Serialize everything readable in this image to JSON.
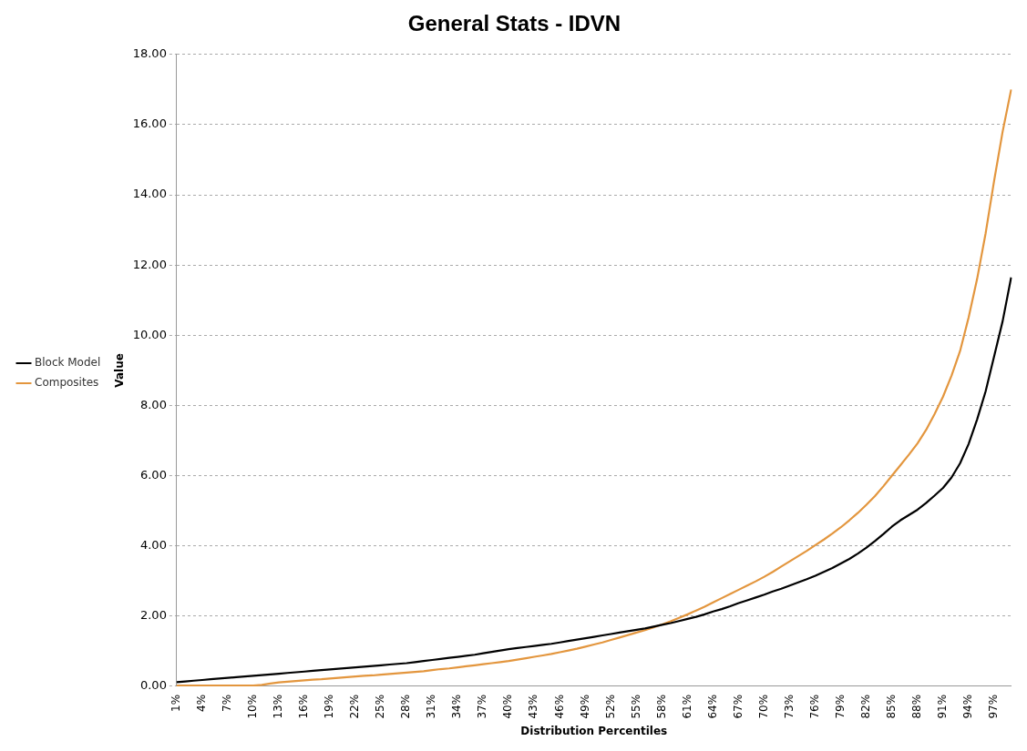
{
  "chart_data": {
    "type": "line",
    "title": "General Stats - IDVN",
    "xlabel": "Distribution Percentiles",
    "ylabel": "Value",
    "categories": [
      "1%",
      null,
      null,
      "4%",
      null,
      null,
      "7%",
      null,
      null,
      "10%",
      null,
      null,
      "13%",
      null,
      null,
      "16%",
      null,
      null,
      "19%",
      null,
      null,
      "22%",
      null,
      null,
      "25%",
      null,
      null,
      "28%",
      null,
      null,
      "31%",
      null,
      null,
      "34%",
      null,
      null,
      "37%",
      null,
      null,
      "40%",
      null,
      null,
      "43%",
      null,
      null,
      "46%",
      null,
      null,
      "49%",
      null,
      null,
      "52%",
      null,
      null,
      "55%",
      null,
      null,
      "58%",
      null,
      null,
      "61%",
      null,
      null,
      "64%",
      null,
      null,
      "67%",
      null,
      null,
      "70%",
      null,
      null,
      "73%",
      null,
      null,
      "76%",
      null,
      null,
      "79%",
      null,
      null,
      "82%",
      null,
      null,
      "85%",
      null,
      null,
      "88%",
      null,
      null,
      "91%",
      null,
      null,
      "94%",
      null,
      null,
      "97%",
      null,
      null
    ],
    "series": [
      {
        "name": "Block Model",
        "color": "#000000",
        "values": [
          0.12,
          0.14,
          0.16,
          0.18,
          0.2,
          0.22,
          0.24,
          0.26,
          0.28,
          0.3,
          0.32,
          0.34,
          0.36,
          0.38,
          0.4,
          0.42,
          0.44,
          0.46,
          0.48,
          0.5,
          0.52,
          0.54,
          0.56,
          0.58,
          0.6,
          0.62,
          0.64,
          0.66,
          0.69,
          0.72,
          0.75,
          0.78,
          0.81,
          0.84,
          0.87,
          0.9,
          0.94,
          0.98,
          1.02,
          1.06,
          1.09,
          1.12,
          1.15,
          1.18,
          1.21,
          1.25,
          1.29,
          1.33,
          1.37,
          1.41,
          1.45,
          1.49,
          1.53,
          1.57,
          1.61,
          1.65,
          1.7,
          1.75,
          1.8,
          1.86,
          1.92,
          1.98,
          2.05,
          2.13,
          2.2,
          2.28,
          2.37,
          2.45,
          2.53,
          2.61,
          2.7,
          2.78,
          2.87,
          2.96,
          3.05,
          3.15,
          3.26,
          3.37,
          3.5,
          3.63,
          3.78,
          3.95,
          4.14,
          4.34,
          4.55,
          4.73,
          4.88,
          5.03,
          5.22,
          5.43,
          5.65,
          5.95,
          6.35,
          6.9,
          7.6,
          8.4,
          9.4,
          10.4,
          11.65
        ]
      },
      {
        "name": "Composites",
        "color": "#e3963e",
        "values": [
          0.02,
          0.02,
          0.02,
          0.02,
          0.02,
          0.02,
          0.02,
          0.02,
          0.02,
          0.02,
          0.04,
          0.08,
          0.11,
          0.13,
          0.15,
          0.17,
          0.19,
          0.2,
          0.22,
          0.24,
          0.26,
          0.28,
          0.3,
          0.31,
          0.33,
          0.35,
          0.37,
          0.39,
          0.41,
          0.43,
          0.46,
          0.49,
          0.51,
          0.54,
          0.57,
          0.6,
          0.63,
          0.66,
          0.69,
          0.72,
          0.76,
          0.8,
          0.84,
          0.88,
          0.92,
          0.97,
          1.02,
          1.07,
          1.13,
          1.19,
          1.25,
          1.32,
          1.39,
          1.46,
          1.53,
          1.6,
          1.68,
          1.76,
          1.85,
          1.95,
          2.05,
          2.16,
          2.27,
          2.39,
          2.51,
          2.63,
          2.75,
          2.87,
          2.99,
          3.12,
          3.26,
          3.41,
          3.56,
          3.71,
          3.86,
          4.02,
          4.18,
          4.35,
          4.53,
          4.73,
          4.94,
          5.17,
          5.42,
          5.7,
          6.0,
          6.3,
          6.6,
          6.92,
          7.3,
          7.75,
          8.25,
          8.85,
          9.55,
          10.5,
          11.6,
          12.9,
          14.4,
          15.8,
          17.0
        ]
      }
    ],
    "ylim": [
      0,
      18
    ],
    "yticks": [
      {
        "value": 0,
        "label": "0.00"
      },
      {
        "value": 2,
        "label": "2.00"
      },
      {
        "value": 4,
        "label": "4.00"
      },
      {
        "value": 6,
        "label": "6.00"
      },
      {
        "value": 8,
        "label": "8.00"
      },
      {
        "value": 10,
        "label": "10.00"
      },
      {
        "value": 12,
        "label": "12.00"
      },
      {
        "value": 14,
        "label": "14.00"
      },
      {
        "value": 16,
        "label": "16.00"
      },
      {
        "value": 18,
        "label": "18.00"
      }
    ],
    "grid": "y",
    "legend": "left",
    "marker": "none",
    "line_style": "solid"
  }
}
